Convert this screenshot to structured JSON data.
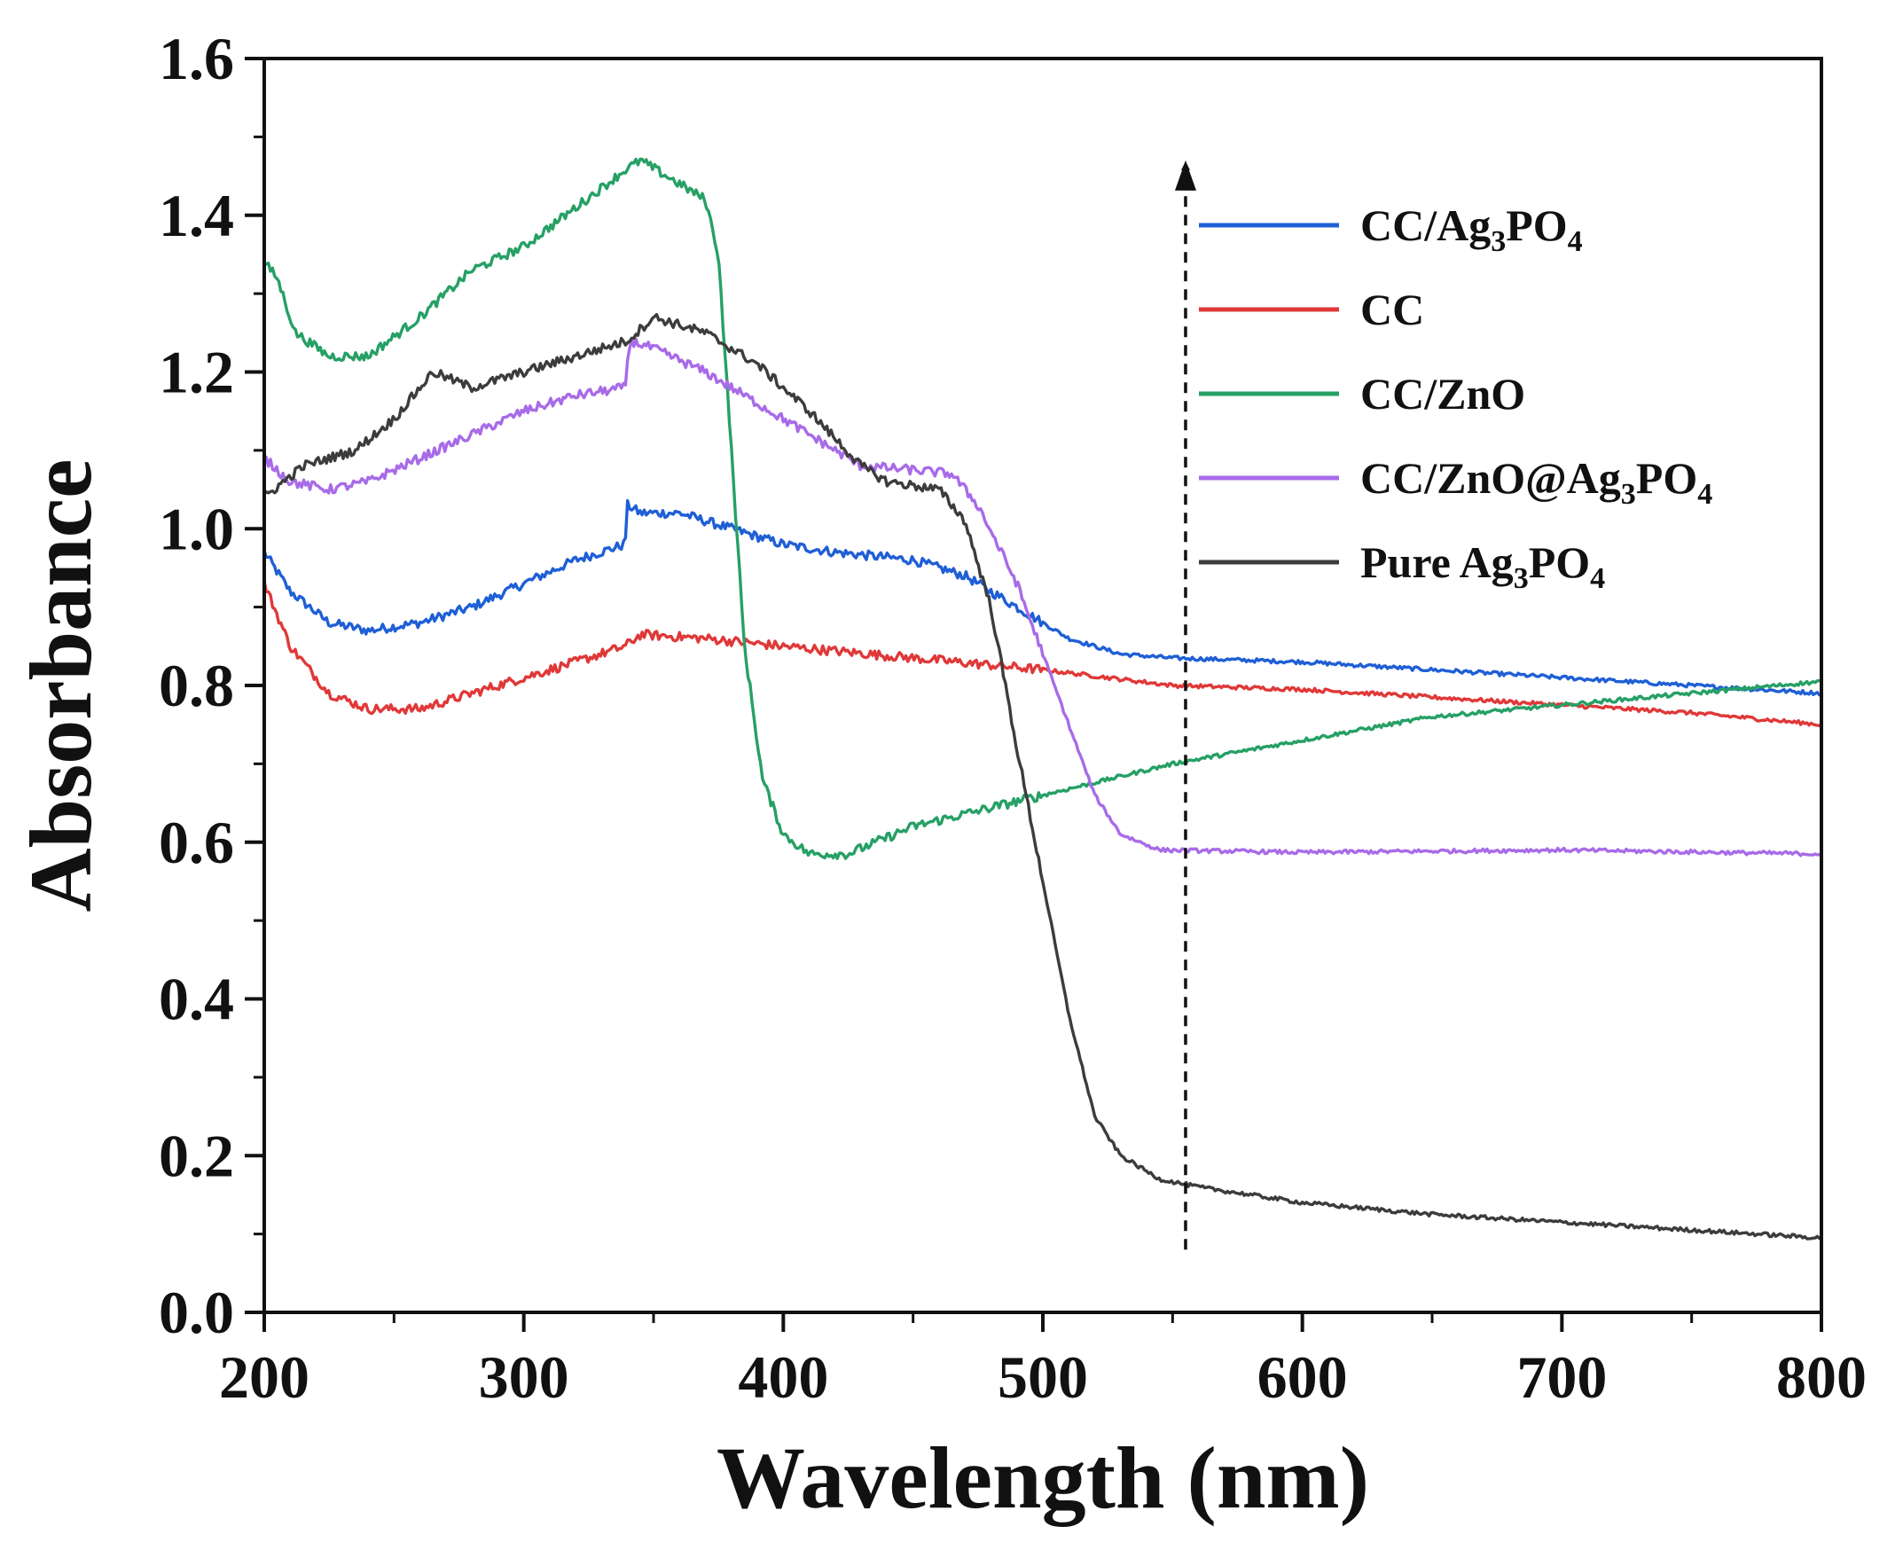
{
  "chart_data": {
    "type": "line",
    "title": "",
    "xlabel": "Wavelength (nm)",
    "ylabel": "Absorbance",
    "xlim": [
      200,
      800
    ],
    "ylim": [
      0.0,
      1.6
    ],
    "xticks": [
      200,
      300,
      400,
      500,
      600,
      700,
      800
    ],
    "xtick_labels": [
      "200",
      "300",
      "400",
      "500",
      "600",
      "700",
      "800"
    ],
    "yticks": [
      0.0,
      0.2,
      0.4,
      0.6,
      0.8,
      1.0,
      1.2,
      1.4,
      1.6
    ],
    "ytick_labels": [
      "0.0",
      "0.2",
      "0.4",
      "0.6",
      "0.8",
      "1.0",
      "1.2",
      "1.4",
      "1.6"
    ],
    "grid": false,
    "legend_position": "top-right",
    "annotation": {
      "type": "dashed-arrow",
      "x": 555,
      "y_from": 0.08,
      "y_to": 1.47
    },
    "series": [
      {
        "name": "CC/Ag3PO4",
        "legend_parts": [
          "CC/Ag",
          "3",
          "PO",
          "4"
        ],
        "color": "#1f5fd6",
        "points": [
          [
            200,
            0.97
          ],
          [
            210,
            0.92
          ],
          [
            225,
            0.88
          ],
          [
            240,
            0.87
          ],
          [
            260,
            0.88
          ],
          [
            280,
            0.9
          ],
          [
            300,
            0.93
          ],
          [
            320,
            0.96
          ],
          [
            339,
            0.98
          ],
          [
            340,
            1.03
          ],
          [
            345,
            1.02
          ],
          [
            360,
            1.02
          ],
          [
            380,
            1.0
          ],
          [
            400,
            0.98
          ],
          [
            420,
            0.97
          ],
          [
            450,
            0.96
          ],
          [
            470,
            0.94
          ],
          [
            490,
            0.9
          ],
          [
            510,
            0.86
          ],
          [
            530,
            0.84
          ],
          [
            550,
            0.835
          ],
          [
            600,
            0.83
          ],
          [
            650,
            0.82
          ],
          [
            700,
            0.81
          ],
          [
            750,
            0.8
          ],
          [
            800,
            0.79
          ]
        ]
      },
      {
        "name": "CC",
        "legend_parts": [
          "CC"
        ],
        "color": "#e03838",
        "points": [
          [
            200,
            0.93
          ],
          [
            210,
            0.85
          ],
          [
            225,
            0.79
          ],
          [
            240,
            0.77
          ],
          [
            260,
            0.77
          ],
          [
            280,
            0.79
          ],
          [
            300,
            0.81
          ],
          [
            320,
            0.83
          ],
          [
            339,
            0.85
          ],
          [
            345,
            0.865
          ],
          [
            370,
            0.86
          ],
          [
            400,
            0.85
          ],
          [
            450,
            0.835
          ],
          [
            500,
            0.82
          ],
          [
            550,
            0.8
          ],
          [
            600,
            0.795
          ],
          [
            650,
            0.785
          ],
          [
            700,
            0.775
          ],
          [
            750,
            0.765
          ],
          [
            800,
            0.75
          ]
        ]
      },
      {
        "name": "CC/ZnO",
        "legend_parts": [
          "CC/ZnO"
        ],
        "color": "#26a065",
        "points": [
          [
            200,
            1.34
          ],
          [
            205,
            1.32
          ],
          [
            212,
            1.25
          ],
          [
            225,
            1.22
          ],
          [
            240,
            1.22
          ],
          [
            260,
            1.27
          ],
          [
            280,
            1.33
          ],
          [
            300,
            1.36
          ],
          [
            320,
            1.41
          ],
          [
            340,
            1.46
          ],
          [
            345,
            1.47
          ],
          [
            360,
            1.44
          ],
          [
            370,
            1.42
          ],
          [
            375,
            1.35
          ],
          [
            380,
            1.1
          ],
          [
            385,
            0.85
          ],
          [
            392,
            0.68
          ],
          [
            400,
            0.61
          ],
          [
            410,
            0.585
          ],
          [
            425,
            0.585
          ],
          [
            450,
            0.62
          ],
          [
            500,
            0.66
          ],
          [
            550,
            0.7
          ],
          [
            600,
            0.73
          ],
          [
            650,
            0.76
          ],
          [
            700,
            0.775
          ],
          [
            750,
            0.79
          ],
          [
            800,
            0.805
          ]
        ]
      },
      {
        "name": "CC/ZnO@Ag3PO4",
        "legend_parts": [
          "CC/ZnO@Ag",
          "3",
          "PO",
          "4"
        ],
        "color": "#a86be8",
        "points": [
          [
            200,
            1.09
          ],
          [
            210,
            1.06
          ],
          [
            225,
            1.05
          ],
          [
            240,
            1.06
          ],
          [
            260,
            1.09
          ],
          [
            280,
            1.12
          ],
          [
            300,
            1.15
          ],
          [
            320,
            1.17
          ],
          [
            339,
            1.18
          ],
          [
            341,
            1.24
          ],
          [
            350,
            1.23
          ],
          [
            370,
            1.2
          ],
          [
            390,
            1.16
          ],
          [
            410,
            1.12
          ],
          [
            430,
            1.08
          ],
          [
            450,
            1.075
          ],
          [
            465,
            1.07
          ],
          [
            475,
            1.03
          ],
          [
            490,
            0.93
          ],
          [
            500,
            0.84
          ],
          [
            510,
            0.75
          ],
          [
            520,
            0.66
          ],
          [
            530,
            0.61
          ],
          [
            545,
            0.59
          ],
          [
            600,
            0.587
          ],
          [
            700,
            0.59
          ],
          [
            800,
            0.585
          ]
        ]
      },
      {
        "name": "Pure Ag3PO4",
        "legend_parts": [
          "Pure Ag",
          "3",
          "PO",
          "4"
        ],
        "color": "#3c3c3c",
        "points": [
          [
            200,
            1.04
          ],
          [
            215,
            1.08
          ],
          [
            235,
            1.1
          ],
          [
            250,
            1.14
          ],
          [
            265,
            1.2
          ],
          [
            280,
            1.18
          ],
          [
            300,
            1.2
          ],
          [
            320,
            1.22
          ],
          [
            340,
            1.24
          ],
          [
            350,
            1.27
          ],
          [
            370,
            1.25
          ],
          [
            390,
            1.21
          ],
          [
            410,
            1.15
          ],
          [
            430,
            1.08
          ],
          [
            440,
            1.06
          ],
          [
            460,
            1.05
          ],
          [
            470,
            1.01
          ],
          [
            480,
            0.9
          ],
          [
            490,
            0.72
          ],
          [
            500,
            0.55
          ],
          [
            510,
            0.38
          ],
          [
            520,
            0.25
          ],
          [
            530,
            0.2
          ],
          [
            545,
            0.17
          ],
          [
            560,
            0.16
          ],
          [
            600,
            0.14
          ],
          [
            650,
            0.125
          ],
          [
            700,
            0.115
          ],
          [
            750,
            0.105
          ],
          [
            800,
            0.095
          ]
        ]
      }
    ]
  }
}
